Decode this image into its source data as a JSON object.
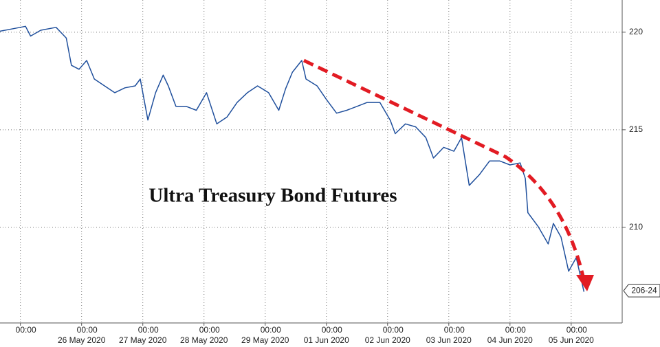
{
  "chart_data": {
    "type": "line",
    "title": "Ultra Treasury Bond Futures",
    "x": [
      "2020-05-24 16:00",
      "2020-05-24 22:00",
      "2020-05-25 02:00",
      "2020-05-25 04:00",
      "2020-05-25 08:00",
      "2020-05-25 14:00",
      "2020-05-25 18:00",
      "2020-05-25 20:00",
      "2020-05-25 23:00",
      "2020-05-26 02:00",
      "2020-05-26 05:00",
      "2020-05-26 09:00",
      "2020-05-26 13:00",
      "2020-05-26 17:00",
      "2020-05-26 21:00",
      "2020-05-26 23:00",
      "2020-05-27 02:00",
      "2020-05-27 05:00",
      "2020-05-27 08:00",
      "2020-05-27 10:00",
      "2020-05-27 13:00",
      "2020-05-27 17:00",
      "2020-05-27 21:00",
      "2020-05-28 01:00",
      "2020-05-28 05:00",
      "2020-05-28 09:00",
      "2020-05-28 13:00",
      "2020-05-28 17:00",
      "2020-05-28 21:00",
      "2020-05-29 04:00",
      "2020-05-29 16:00",
      "2020-05-30 00:00",
      "2020-05-30 08:00",
      "2020-05-30 19:00",
      "2020-05-31 00:00",
      "2020-05-31 13:00",
      "2020-06-01 00:00",
      "2020-06-01 04:00",
      "2020-06-01 08:00",
      "2020-06-01 12:00",
      "2020-06-01 16:00",
      "2020-06-01 21:00",
      "2020-06-02 01:00",
      "2020-06-02 03:00",
      "2020-06-02 07:00",
      "2020-06-02 11:00",
      "2020-06-02 15:00",
      "2020-06-02 18:00",
      "2020-06-02 22:00",
      "2020-06-03 02:00",
      "2020-06-03 05:00",
      "2020-06-03 08:00",
      "2020-06-03 12:00",
      "2020-06-03 16:00",
      "2020-06-03 20:00",
      "2020-06-04 00:00",
      "2020-06-04 04:00",
      "2020-06-04 06:00",
      "2020-06-04 07:00",
      "2020-06-04 11:00",
      "2020-06-04 15:00",
      "2020-06-04 17:00",
      "2020-06-04 20:00",
      "2020-06-04 23:00",
      "2020-06-05 02:00",
      "2020-06-05 05:00"
    ],
    "series": [
      {
        "color": "#1f4f9c",
        "values": [
          220.05,
          220.2,
          220.3,
          219.8,
          220.1,
          220.25,
          219.7,
          218.3,
          218.1,
          218.55,
          217.6,
          217.25,
          216.9,
          217.15,
          217.25,
          217.6,
          215.5,
          216.9,
          217.8,
          217.25,
          216.2,
          216.2,
          216.0,
          216.9,
          215.3,
          215.65,
          216.4,
          216.9,
          217.25,
          216.9,
          216.0,
          217.1,
          217.95,
          218.55,
          217.6,
          217.25,
          216.55,
          215.85,
          216.0,
          216.2,
          216.4,
          216.4,
          215.5,
          214.8,
          215.3,
          215.15,
          214.6,
          213.55,
          214.1,
          213.9,
          214.6,
          212.15,
          212.7,
          213.4,
          213.4,
          213.2,
          213.3,
          212.5,
          210.75,
          210.05,
          209.15,
          210.2,
          209.5,
          207.75,
          208.45,
          206.7
        ]
      }
    ],
    "xlim": [
      "2020-05-24 16:00",
      "2020-06-05 20:00"
    ],
    "xticks": [
      {
        "value": "2020-05-25 00:00",
        "label": "00:00"
      },
      {
        "value": "2020-05-26 00:00",
        "label": "00:00",
        "date": "26 May 2020"
      },
      {
        "value": "2020-05-27 00:00",
        "label": "00:00",
        "date": "27 May 2020"
      },
      {
        "value": "2020-05-28 00:00",
        "label": "00:00",
        "date": "28 May 2020"
      },
      {
        "value": "2020-05-29 00:00",
        "label": "00:00",
        "date": "29 May 2020"
      },
      {
        "value": "2020-06-01 00:00",
        "label": "00:00",
        "date": "01 Jun 2020"
      },
      {
        "value": "2020-06-02 00:00",
        "label": "00:00",
        "date": "02 Jun 2020"
      },
      {
        "value": "2020-06-03 00:00",
        "label": "00:00",
        "date": "03 Jun 2020"
      },
      {
        "value": "2020-06-04 00:00",
        "label": "00:00",
        "date": "04 Jun 2020"
      },
      {
        "value": "2020-06-05 00:00",
        "label": "00:00",
        "date": "05 Jun 2020"
      }
    ],
    "ylim": [
      205.1,
      221.65
    ],
    "yticks": [
      210,
      215,
      220
    ],
    "y_axis_side": "right",
    "grid": true,
    "last_price": {
      "value": 206.75,
      "label": "206-24"
    }
  }
}
